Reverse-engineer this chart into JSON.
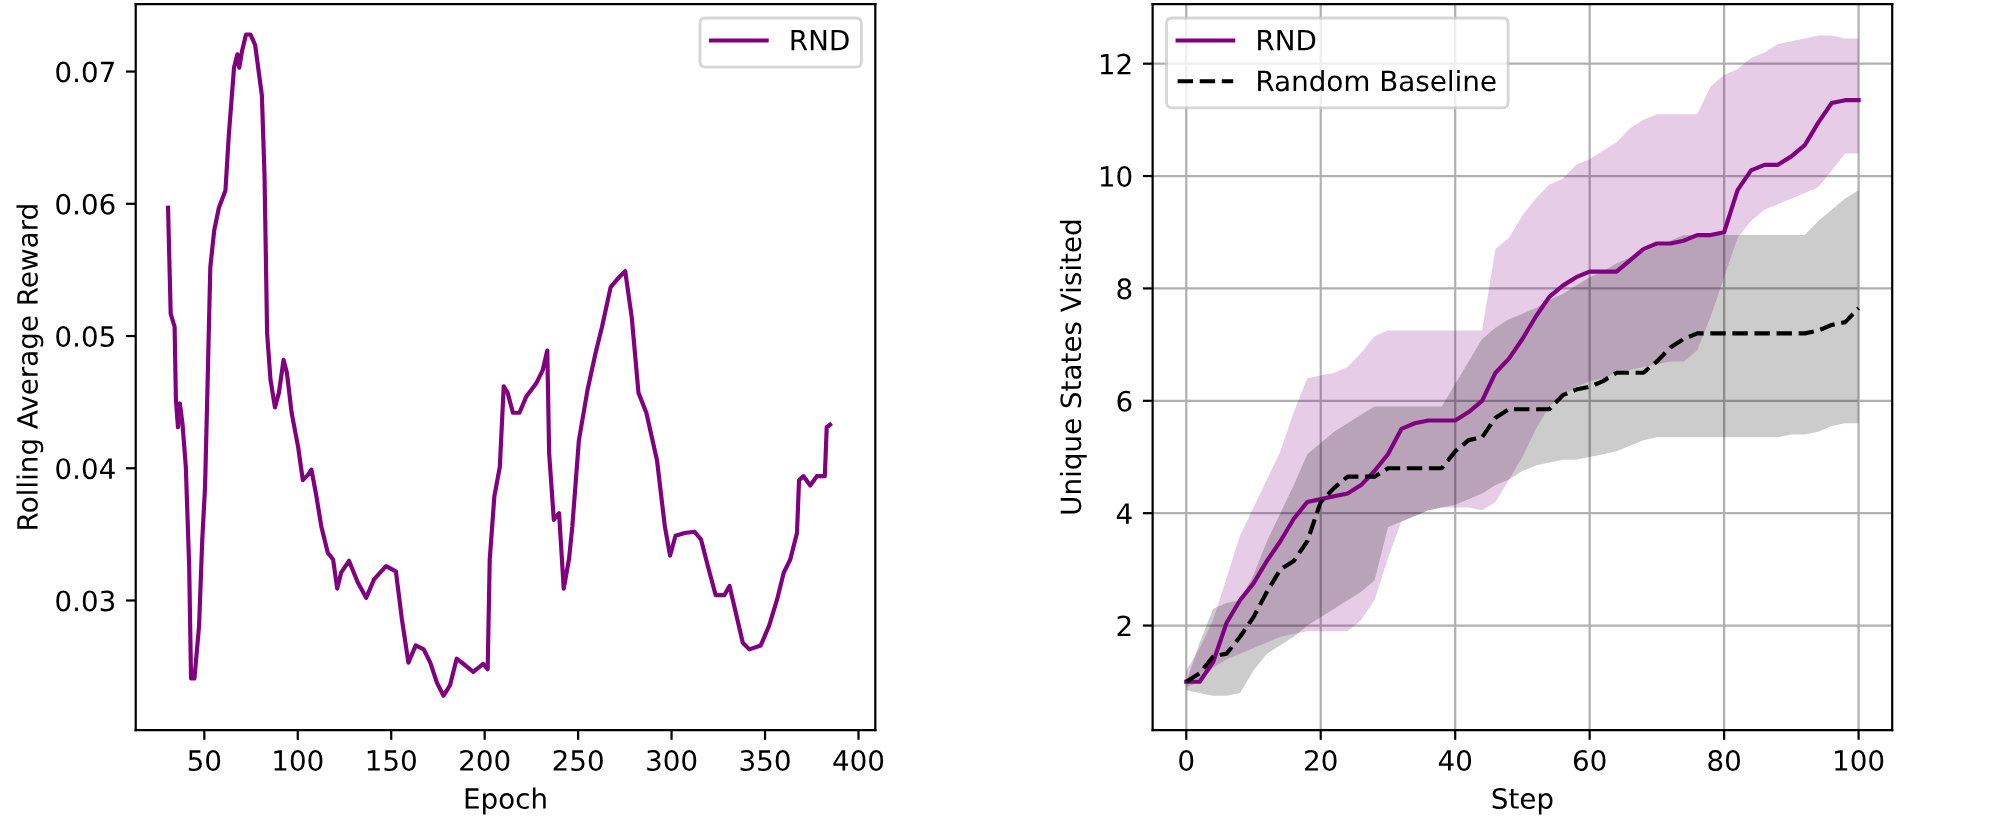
{
  "chart_data": [
    {
      "type": "line",
      "xlabel": "Epoch",
      "ylabel": "Rolling Average Reward",
      "xlim": [
        13.3,
        409
      ],
      "ylim": [
        0.0202,
        0.0751
      ],
      "xticks": [
        50,
        100,
        150,
        200,
        250,
        300,
        350,
        400
      ],
      "yticks": [
        0.03,
        0.04,
        0.05,
        0.06,
        0.07
      ],
      "grid": false,
      "legend": "upper right",
      "series": [
        {
          "name": "RND",
          "color": "#800080",
          "x": [
            30.6,
            32,
            34.1,
            34.8,
            35.9,
            36.9,
            38.3,
            40.1,
            41.9,
            42.9,
            44.7,
            47.2,
            48.9,
            50.4,
            51.8,
            53.2,
            55.3,
            57.8,
            61.3,
            63.1,
            65.9,
            67.7,
            68.7,
            70.1,
            72.3,
            74.7,
            77.2,
            80.8,
            82.2,
            83.6,
            85.4,
            87.8,
            89.9,
            92.4,
            94.2,
            96.7,
            100.2,
            102.7,
            105.5,
            107.3,
            109.7,
            112.6,
            116.1,
            118.9,
            121.1,
            123.2,
            127.4,
            132.0,
            136.6,
            140.8,
            147.2,
            152.5,
            155.7,
            159.2,
            163.1,
            167.4,
            170.9,
            174.4,
            178.0,
            181.5,
            185.0,
            189.6,
            193.9,
            199.2,
            201.6,
            202.7,
            205.2,
            208.1,
            210.2,
            212.3,
            215.1,
            218.6,
            222.2,
            227.5,
            231.0,
            233.5,
            234.5,
            237.0,
            239.8,
            242.3,
            245.1,
            246.9,
            250.4,
            255.0,
            259.3,
            262.8,
            267.4,
            271.6,
            275.2,
            278.7,
            282.3,
            286.5,
            292.2,
            296.4,
            299.2,
            302.1,
            307.0,
            312.3,
            315.8,
            319.4,
            323.6,
            328.2,
            331.0,
            333.5,
            338.1,
            341.6,
            347.7,
            352.2,
            356.5,
            360.0,
            363.5,
            367.1,
            368.2,
            370.6,
            374.2,
            377.7,
            382.0,
            383.0,
            384.8
          ],
          "values": [
            0.0597,
            0.0517,
            0.0507,
            0.0452,
            0.0431,
            0.0449,
            0.0434,
            0.0401,
            0.0326,
            0.0241,
            0.0241,
            0.0281,
            0.0346,
            0.0386,
            0.0467,
            0.0552,
            0.058,
            0.0597,
            0.061,
            0.0652,
            0.0703,
            0.0713,
            0.0703,
            0.0715,
            0.0728,
            0.0728,
            0.072,
            0.0682,
            0.0622,
            0.0502,
            0.0467,
            0.0446,
            0.0457,
            0.0482,
            0.0472,
            0.0442,
            0.0416,
            0.0391,
            0.0395,
            0.0399,
            0.0381,
            0.0356,
            0.0336,
            0.0331,
            0.0309,
            0.0321,
            0.033,
            0.0314,
            0.0302,
            0.0316,
            0.0326,
            0.0322,
            0.0286,
            0.0253,
            0.0266,
            0.0263,
            0.0253,
            0.0238,
            0.0228,
            0.0236,
            0.0256,
            0.0251,
            0.0246,
            0.0252,
            0.0248,
            0.0331,
            0.0379,
            0.0401,
            0.0462,
            0.0457,
            0.0442,
            0.0442,
            0.0454,
            0.0464,
            0.0474,
            0.0489,
            0.0411,
            0.0361,
            0.0366,
            0.0309,
            0.0331,
            0.0356,
            0.0421,
            0.0459,
            0.0487,
            0.0507,
            0.0537,
            0.0544,
            0.0549,
            0.0514,
            0.0457,
            0.0442,
            0.0406,
            0.0356,
            0.0334,
            0.0349,
            0.0351,
            0.0352,
            0.0346,
            0.0326,
            0.0304,
            0.0304,
            0.0311,
            0.0296,
            0.0268,
            0.0263,
            0.0266,
            0.0281,
            0.0301,
            0.0321,
            0.0331,
            0.0351,
            0.0391,
            0.0394,
            0.0387,
            0.0394,
            0.0394,
            0.0431,
            0.0433
          ]
        }
      ]
    },
    {
      "type": "line",
      "xlabel": "Step",
      "ylabel": "Unique States Visited",
      "xlim": [
        -5,
        105
      ],
      "ylim": [
        0.14,
        13.06
      ],
      "xticks": [
        0,
        20,
        40,
        60,
        80,
        100
      ],
      "yticks": [
        2,
        4,
        6,
        8,
        10,
        12
      ],
      "grid": true,
      "legend": "upper left",
      "x": [
        0,
        2,
        4,
        6,
        8,
        10,
        12,
        14,
        16,
        18,
        20,
        22,
        24,
        26,
        28,
        30,
        32,
        34,
        36,
        38,
        40,
        42,
        44,
        46,
        48,
        50,
        52,
        54,
        56,
        58,
        60,
        62,
        64,
        66,
        68,
        70,
        72,
        74,
        76,
        78,
        80,
        82,
        84,
        86,
        88,
        90,
        92,
        94,
        96,
        98,
        100
      ],
      "series": [
        {
          "name": "RND",
          "color": "#800080",
          "line_style": "solid",
          "values": [
            1.0,
            1.0,
            1.35,
            2.05,
            2.45,
            2.75,
            3.15,
            3.5,
            3.9,
            4.2,
            4.25,
            4.3,
            4.35,
            4.5,
            4.75,
            5.05,
            5.5,
            5.6,
            5.65,
            5.65,
            5.65,
            5.8,
            6.0,
            6.5,
            6.75,
            7.1,
            7.5,
            7.85,
            8.05,
            8.2,
            8.3,
            8.3,
            8.3,
            8.5,
            8.7,
            8.8,
            8.8,
            8.85,
            8.95,
            8.95,
            9.0,
            9.75,
            10.1,
            10.2,
            10.2,
            10.35,
            10.55,
            10.95,
            11.3,
            11.35,
            11.35
          ],
          "upper": [
            1.2,
            1.6,
            2.1,
            2.85,
            3.6,
            4.1,
            4.6,
            5.1,
            5.8,
            6.4,
            6.45,
            6.5,
            6.6,
            6.85,
            7.15,
            7.25,
            7.25,
            7.25,
            7.25,
            7.25,
            7.25,
            7.25,
            7.25,
            8.7,
            8.9,
            9.3,
            9.6,
            9.85,
            9.95,
            10.2,
            10.3,
            10.45,
            10.6,
            10.85,
            11.0,
            11.1,
            11.1,
            11.1,
            11.1,
            11.6,
            11.8,
            11.9,
            12.1,
            12.2,
            12.35,
            12.4,
            12.45,
            12.5,
            12.5,
            12.45,
            12.45
          ],
          "lower": [
            0.9,
            1.0,
            1.25,
            1.4,
            1.5,
            1.6,
            1.7,
            1.8,
            1.85,
            1.9,
            1.9,
            1.9,
            1.9,
            2.1,
            2.45,
            3.2,
            3.85,
            3.95,
            4.05,
            4.1,
            4.1,
            4.1,
            4.05,
            4.2,
            4.6,
            5.0,
            5.5,
            5.9,
            6.1,
            6.25,
            6.35,
            6.4,
            6.5,
            6.55,
            6.6,
            6.65,
            6.7,
            6.7,
            6.9,
            7.5,
            8.2,
            8.9,
            9.2,
            9.4,
            9.5,
            9.6,
            9.7,
            9.8,
            10.1,
            10.4,
            10.4
          ]
        },
        {
          "name": "Random Baseline",
          "color": "#000000",
          "line_style": "dashed",
          "values": [
            1.0,
            1.15,
            1.45,
            1.5,
            1.8,
            2.15,
            2.6,
            3.0,
            3.15,
            3.5,
            4.2,
            4.45,
            4.65,
            4.65,
            4.65,
            4.8,
            4.8,
            4.8,
            4.8,
            4.8,
            5.1,
            5.3,
            5.35,
            5.7,
            5.85,
            5.85,
            5.85,
            5.85,
            6.1,
            6.2,
            6.25,
            6.35,
            6.5,
            6.5,
            6.5,
            6.7,
            6.95,
            7.1,
            7.2,
            7.2,
            7.2,
            7.2,
            7.2,
            7.2,
            7.2,
            7.2,
            7.2,
            7.25,
            7.35,
            7.4,
            7.65
          ],
          "upper": [
            1.0,
            1.7,
            2.3,
            2.4,
            2.45,
            2.9,
            3.5,
            4.0,
            4.5,
            5.05,
            5.25,
            5.45,
            5.6,
            5.75,
            5.9,
            5.9,
            5.9,
            5.9,
            5.9,
            5.9,
            6.3,
            6.7,
            7.1,
            7.3,
            7.45,
            7.55,
            7.65,
            7.8,
            7.9,
            8.05,
            8.2,
            8.3,
            8.45,
            8.55,
            8.65,
            8.75,
            8.85,
            8.95,
            8.95,
            8.95,
            8.95,
            8.95,
            8.95,
            8.95,
            8.95,
            8.95,
            8.95,
            9.2,
            9.4,
            9.6,
            9.75
          ],
          "lower": [
            0.85,
            0.8,
            0.75,
            0.75,
            0.8,
            1.2,
            1.5,
            1.65,
            1.8,
            2.0,
            2.15,
            2.3,
            2.45,
            2.6,
            2.8,
            3.75,
            3.85,
            3.95,
            4.05,
            4.1,
            4.15,
            4.25,
            4.35,
            4.5,
            4.6,
            4.75,
            4.85,
            4.9,
            4.95,
            4.95,
            5.0,
            5.05,
            5.1,
            5.2,
            5.3,
            5.35,
            5.35,
            5.35,
            5.35,
            5.35,
            5.35,
            5.35,
            5.35,
            5.35,
            5.35,
            5.4,
            5.4,
            5.45,
            5.55,
            5.6,
            5.6
          ]
        }
      ]
    }
  ]
}
